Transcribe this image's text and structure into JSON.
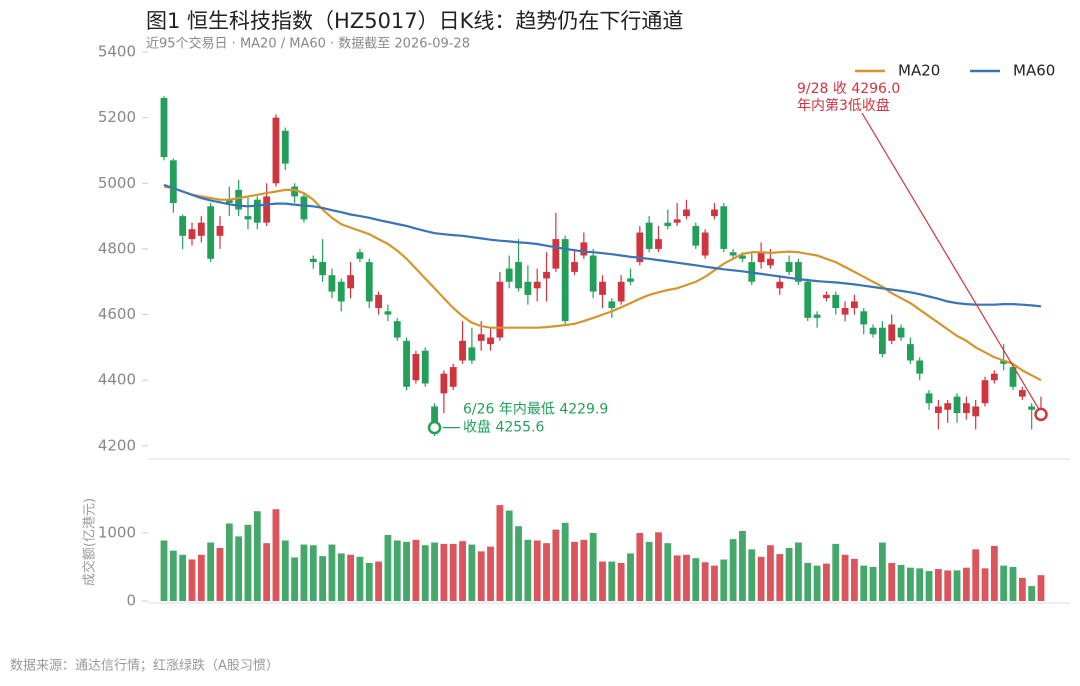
{
  "chart_data": [
    {
      "type": "candlestick",
      "title": "图1  恒生科技指数（HZ5017）日K线：趋势仍在下行通道",
      "subtitle": "近95个交易日 · MA20 / MA60 · 数据截至 2026-09-28",
      "ylim": [
        4160,
        5400
      ],
      "yticks": [
        4200,
        4400,
        4600,
        4800,
        5000,
        5200,
        5400
      ],
      "up_color": "#d0353f",
      "down_color": "#22a05a",
      "open": [
        5260,
        5070,
        4900,
        4830,
        4840,
        4930,
        4840,
        4950,
        4980,
        4900,
        4950,
        4880,
        5000,
        5160,
        4990,
        4960,
        4770,
        4760,
        4720,
        4700,
        4680,
        4790,
        4760,
        4620,
        4610,
        4580,
        4520,
        4400,
        4490,
        4320,
        4360,
        4380,
        4460,
        4500,
        4520,
        4510,
        4530,
        4740,
        4760,
        4700,
        4680,
        4710,
        4740,
        4830,
        4730,
        4780,
        4780,
        4660,
        4640,
        4640,
        4710,
        4760,
        4880,
        4800,
        4880,
        4880,
        4900,
        4870,
        4780,
        4900,
        4930,
        4790,
        4780,
        4760,
        4760,
        4750,
        4680,
        4760,
        4760,
        4700,
        4600,
        4650,
        4660,
        4600,
        4620,
        4610,
        4560,
        4560,
        4520,
        4560,
        4510,
        4460,
        4360,
        4300,
        4310,
        4350,
        4300,
        4290,
        4330,
        4400,
        4460,
        4440,
        4350,
        4320,
        4290
      ],
      "high": [
        5265,
        5075,
        4905,
        4880,
        4900,
        4940,
        4900,
        4990,
        5010,
        4960,
        4960,
        5000,
        5210,
        5170,
        5000,
        4970,
        4780,
        4830,
        4740,
        4710,
        4760,
        4800,
        4770,
        4670,
        4630,
        4590,
        4530,
        4490,
        4500,
        4330,
        4430,
        4450,
        4580,
        4560,
        4580,
        4560,
        4730,
        4780,
        4830,
        4750,
        4740,
        4790,
        4910,
        4840,
        4800,
        4850,
        4800,
        4720,
        4650,
        4720,
        4740,
        4870,
        4900,
        4870,
        4920,
        4940,
        4950,
        4880,
        4860,
        4940,
        4940,
        4800,
        4790,
        4790,
        4820,
        4800,
        4720,
        4780,
        4770,
        4710,
        4610,
        4670,
        4670,
        4640,
        4660,
        4620,
        4570,
        4580,
        4600,
        4570,
        4530,
        4470,
        4370,
        4340,
        4340,
        4360,
        4350,
        4340,
        4410,
        4430,
        4510,
        4450,
        4380,
        4330,
        4350
      ],
      "low": [
        5070,
        4910,
        4800,
        4810,
        4820,
        4760,
        4800,
        4900,
        4900,
        4860,
        4860,
        4870,
        4990,
        5040,
        4940,
        4880,
        4740,
        4700,
        4650,
        4610,
        4650,
        4760,
        4620,
        4600,
        4580,
        4520,
        4370,
        4390,
        4380,
        4229.9,
        4300,
        4370,
        4450,
        4450,
        4490,
        4490,
        4520,
        4680,
        4670,
        4630,
        4640,
        4640,
        4730,
        4570,
        4720,
        4770,
        4650,
        4620,
        4590,
        4630,
        4690,
        4750,
        4790,
        4790,
        4860,
        4870,
        4890,
        4800,
        4770,
        4890,
        4790,
        4770,
        4760,
        4690,
        4740,
        4740,
        4660,
        4720,
        4690,
        4580,
        4560,
        4640,
        4600,
        4580,
        4600,
        4540,
        4530,
        4470,
        4510,
        4520,
        4450,
        4400,
        4310,
        4250,
        4270,
        4270,
        4280,
        4250,
        4320,
        4390,
        4430,
        4370,
        4340,
        4250,
        4280
      ],
      "close": [
        5080,
        4940,
        4840,
        4860,
        4880,
        4770,
        4870,
        4940,
        4920,
        4890,
        4880,
        4960,
        5200,
        5060,
        4960,
        4890,
        4760,
        4720,
        4670,
        4640,
        4720,
        4770,
        4640,
        4660,
        4600,
        4530,
        4380,
        4480,
        4390,
        4255.6,
        4420,
        4440,
        4520,
        4460,
        4540,
        4530,
        4700,
        4700,
        4680,
        4660,
        4700,
        4730,
        4830,
        4580,
        4760,
        4820,
        4670,
        4700,
        4620,
        4700,
        4700,
        4850,
        4800,
        4830,
        4870,
        4890,
        4920,
        4810,
        4850,
        4920,
        4800,
        4780,
        4770,
        4700,
        4790,
        4770,
        4700,
        4730,
        4700,
        4590,
        4590,
        4660,
        4620,
        4620,
        4640,
        4570,
        4540,
        4480,
        4570,
        4530,
        4460,
        4420,
        4330,
        4320,
        4330,
        4300,
        4330,
        4320,
        4400,
        4420,
        4450,
        4380,
        4370,
        4310,
        4296
      ],
      "series": [
        {
          "name": "MA20",
          "color": "#d4952e",
          "values": [
            4990,
            4985,
            4975,
            4965,
            4960,
            4955,
            4950,
            4950,
            4955,
            4960,
            4965,
            4970,
            4975,
            4980,
            4980,
            4970,
            4950,
            4920,
            4895,
            4875,
            4865,
            4855,
            4845,
            4830,
            4815,
            4795,
            4770,
            4740,
            4710,
            4680,
            4650,
            4620,
            4595,
            4575,
            4565,
            4560,
            4560,
            4560,
            4560,
            4560,
            4560,
            4562,
            4565,
            4568,
            4572,
            4580,
            4590,
            4600,
            4610,
            4622,
            4635,
            4648,
            4660,
            4668,
            4675,
            4680,
            4690,
            4700,
            4715,
            4735,
            4755,
            4770,
            4785,
            4790,
            4790,
            4788,
            4790,
            4792,
            4790,
            4785,
            4780,
            4770,
            4760,
            4745,
            4730,
            4715,
            4700,
            4685,
            4665,
            4650,
            4635,
            4615,
            4595,
            4575,
            4555,
            4535,
            4520,
            4500,
            4485,
            4470,
            4460,
            4450,
            4430,
            4415,
            4400
          ]
        },
        {
          "name": "MA60",
          "color": "#3a74b5",
          "values": [
            4995,
            4985,
            4975,
            4965,
            4955,
            4948,
            4942,
            4936,
            4932,
            4930,
            4932,
            4935,
            4938,
            4938,
            4935,
            4932,
            4930,
            4925,
            4918,
            4912,
            4905,
            4900,
            4895,
            4888,
            4882,
            4876,
            4870,
            4862,
            4855,
            4848,
            4845,
            4842,
            4840,
            4836,
            4832,
            4828,
            4825,
            4823,
            4820,
            4818,
            4815,
            4810,
            4805,
            4800,
            4796,
            4792,
            4790,
            4787,
            4784,
            4780,
            4776,
            4773,
            4770,
            4766,
            4762,
            4758,
            4754,
            4750,
            4746,
            4742,
            4738,
            4735,
            4732,
            4728,
            4724,
            4720,
            4716,
            4712,
            4708,
            4705,
            4702,
            4700,
            4698,
            4695,
            4692,
            4688,
            4684,
            4680,
            4676,
            4672,
            4668,
            4662,
            4655,
            4648,
            4640,
            4635,
            4632,
            4630,
            4630,
            4630,
            4632,
            4632,
            4630,
            4628,
            4625
          ]
        }
      ],
      "annotations": [
        {
          "color": "#22a05a",
          "text": [
            "6/26 年内最低 4229.9",
            "收盘 4255.6"
          ]
        },
        {
          "color": "#d0353f",
          "text": [
            "9/28 收 4296.0",
            "年内第3低收盘"
          ]
        }
      ]
    },
    {
      "type": "bar",
      "y_label": "成交额(亿港元)",
      "ylim": [
        0,
        1750
      ],
      "yticks": [
        0,
        1000
      ],
      "up_color": "#dc555c",
      "down_color": "#44a86b",
      "values": [
        890,
        740,
        680,
        610,
        680,
        860,
        780,
        1140,
        950,
        1120,
        1320,
        850,
        1350,
        890,
        640,
        830,
        820,
        660,
        830,
        700,
        680,
        650,
        560,
        580,
        970,
        890,
        870,
        900,
        820,
        860,
        840,
        840,
        880,
        830,
        730,
        800,
        1410,
        1330,
        1100,
        900,
        890,
        850,
        1050,
        1150,
        870,
        900,
        1000,
        580,
        580,
        560,
        700,
        1000,
        870,
        1010,
        850,
        670,
        680,
        630,
        570,
        520,
        610,
        910,
        1030,
        760,
        650,
        820,
        690,
        780,
        860,
        560,
        520,
        550,
        840,
        680,
        620,
        520,
        500,
        860,
        560,
        530,
        490,
        480,
        440,
        470,
        450,
        450,
        490,
        760,
        480,
        810,
        520,
        500,
        340,
        220,
        380
      ]
    },
    {
      "source": "数据来源：通达信行情；红涨绿跌（A股习惯）"
    }
  ]
}
